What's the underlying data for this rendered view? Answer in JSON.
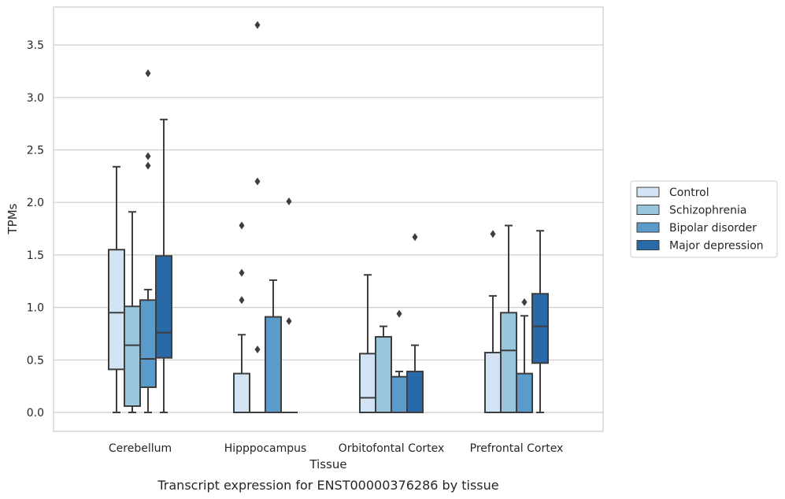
{
  "chart_data": {
    "type": "box",
    "caption": "Transcript expression for ENST00000376286 by tissue",
    "xlabel": "Tissue",
    "ylabel": "TPMs",
    "ylim": [
      -0.18,
      3.88
    ],
    "yticks": [
      "0.0",
      "0.5",
      "1.0",
      "1.5",
      "2.0",
      "2.5",
      "3.0",
      "3.5"
    ],
    "grid": "horizontal",
    "legend_position": "right",
    "categories": [
      "Cerebellum",
      "Hipppocampus",
      "Orbitofontal Cortex",
      "Prefrontal Cortex"
    ],
    "series": [
      {
        "name": "Control",
        "color": "#d2e3f3",
        "boxes": [
          {
            "min": 0.0,
            "q1": 0.41,
            "median": 0.95,
            "q3": 1.55,
            "max": 2.34,
            "outliers": []
          },
          {
            "min": 0.0,
            "q1": 0.0,
            "median": 0.0,
            "q3": 0.37,
            "max": 0.74,
            "outliers": [
              1.07,
              1.33,
              1.78
            ]
          },
          {
            "min": 0.0,
            "q1": 0.0,
            "median": 0.14,
            "q3": 0.56,
            "max": 1.31,
            "outliers": []
          },
          {
            "min": 0.0,
            "q1": 0.0,
            "median": 0.0,
            "q3": 0.57,
            "max": 1.11,
            "outliers": [
              1.7
            ]
          }
        ]
      },
      {
        "name": "Schizophrenia",
        "color": "#9ac5df",
        "boxes": [
          {
            "min": 0.0,
            "q1": 0.06,
            "median": 0.64,
            "q3": 1.01,
            "max": 1.91,
            "outliers": []
          },
          {
            "min": 0.0,
            "q1": 0.0,
            "median": 0.0,
            "q3": 0.0,
            "max": 0.0,
            "outliers": [
              0.6,
              2.2,
              3.69
            ]
          },
          {
            "min": 0.0,
            "q1": 0.0,
            "median": 0.0,
            "q3": 0.72,
            "max": 0.82,
            "outliers": []
          },
          {
            "min": 0.0,
            "q1": 0.0,
            "median": 0.59,
            "q3": 0.95,
            "max": 1.78,
            "outliers": []
          }
        ]
      },
      {
        "name": "Bipolar disorder",
        "color": "#5a9bcb",
        "boxes": [
          {
            "min": 0.0,
            "q1": 0.24,
            "median": 0.51,
            "q3": 1.07,
            "max": 1.17,
            "outliers": [
              2.35,
              2.44,
              3.23
            ]
          },
          {
            "min": 0.0,
            "q1": 0.0,
            "median": 0.0,
            "q3": 0.91,
            "max": 1.26,
            "outliers": []
          },
          {
            "min": 0.0,
            "q1": 0.0,
            "median": 0.0,
            "q3": 0.34,
            "max": 0.39,
            "outliers": [
              0.94
            ]
          },
          {
            "min": 0.0,
            "q1": 0.0,
            "median": 0.0,
            "q3": 0.37,
            "max": 0.92,
            "outliers": [
              1.05
            ]
          }
        ]
      },
      {
        "name": "Major depression",
        "color": "#2a69a8",
        "boxes": [
          {
            "min": 0.0,
            "q1": 0.52,
            "median": 0.76,
            "q3": 1.49,
            "max": 2.79,
            "outliers": []
          },
          {
            "min": 0.0,
            "q1": 0.0,
            "median": 0.0,
            "q3": 0.0,
            "max": 0.0,
            "outliers": [
              0.87,
              2.01
            ]
          },
          {
            "min": 0.0,
            "q1": 0.0,
            "median": 0.0,
            "q3": 0.39,
            "max": 0.64,
            "outliers": [
              1.67
            ]
          },
          {
            "min": 0.0,
            "q1": 0.47,
            "median": 0.82,
            "q3": 1.13,
            "max": 1.73,
            "outliers": []
          }
        ]
      }
    ]
  }
}
